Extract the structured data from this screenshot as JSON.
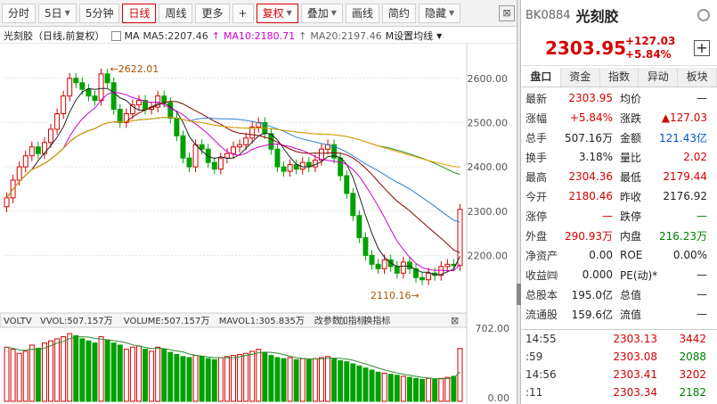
{
  "toolbar": {
    "buttons": [
      {
        "label": "分时",
        "active": false,
        "caret": false
      },
      {
        "label": "5日",
        "active": false,
        "caret": true
      },
      {
        "label": "5分钟",
        "active": false,
        "caret": false
      },
      {
        "label": "日线",
        "active": true,
        "caret": false
      },
      {
        "label": "周线",
        "active": false,
        "caret": false
      },
      {
        "label": "更多",
        "active": false,
        "caret": false
      },
      {
        "label": "+",
        "active": false,
        "caret": false
      },
      {
        "label": "复权",
        "active": true,
        "caret": true
      },
      {
        "label": "叠加",
        "active": false,
        "caret": true
      },
      {
        "label": "画线",
        "active": false,
        "caret": false
      },
      {
        "label": "简约",
        "active": false,
        "caret": false
      },
      {
        "label": "隐藏",
        "active": false,
        "caret": true
      }
    ],
    "close_label": "⊠"
  },
  "legend": {
    "title": "光刻胶（日线,前复权）",
    "ma_label": "MA",
    "ma5": "MA5:2207.46",
    "ma10": "MA10:2180.71",
    "ma20": "MA20:2197.46",
    "settings": "M设置均线",
    "ma5_color": "#333333",
    "ma10_color": "#cc00cc",
    "ma20_color": "#666666"
  },
  "chart": {
    "y_ticks": [
      "2600.00",
      "2500.00",
      "2400.00",
      "2300.00",
      "2200.00"
    ],
    "high_label": "2622.01",
    "low_label": "2110.16",
    "vol_bar_labels": [
      "VOLTV",
      "VVOL:507.157万",
      "VOLUME:507.157万",
      "MAVOL1:305.835万",
      "改参数",
      "加指标",
      "换指标"
    ],
    "vol_ticks": [
      "702.00",
      "0.00"
    ],
    "up_color": "#d40000",
    "down_color": "#00a000"
  },
  "chart_data": {
    "type": "candlestick",
    "ylim": [
      2080,
      2660
    ],
    "high": 2622.01,
    "low": 2110.16,
    "close": [
      2330,
      2370,
      2400,
      2425,
      2445,
      2430,
      2455,
      2485,
      2520,
      2560,
      2600,
      2590,
      2575,
      2560,
      2550,
      2610,
      2590,
      2530,
      2500,
      2520,
      2540,
      2550,
      2530,
      2535,
      2560,
      2545,
      2510,
      2470,
      2420,
      2400,
      2450,
      2440,
      2410,
      2395,
      2420,
      2430,
      2445,
      2450,
      2465,
      2490,
      2500,
      2475,
      2440,
      2400,
      2390,
      2405,
      2395,
      2410,
      2400,
      2415,
      2440,
      2450,
      2420,
      2380,
      2340,
      2290,
      2240,
      2200,
      2180,
      2170,
      2190,
      2175,
      2160,
      2185,
      2170,
      2150,
      2145,
      2160,
      2155,
      2175,
      2180,
      2176.92,
      2303.95
    ],
    "volume": [
      520,
      500,
      460,
      480,
      540,
      510,
      560,
      580,
      600,
      620,
      650,
      630,
      600,
      580,
      560,
      620,
      590,
      560,
      540,
      500,
      520,
      530,
      500,
      480,
      520,
      500,
      470,
      450,
      430,
      420,
      440,
      430,
      410,
      400,
      420,
      430,
      440,
      450,
      460,
      480,
      500,
      470,
      440,
      420,
      410,
      420,
      400,
      410,
      400,
      410,
      420,
      430,
      410,
      390,
      380,
      360,
      340,
      320,
      300,
      280,
      270,
      260,
      250,
      240,
      230,
      220,
      210,
      220,
      210,
      220,
      230,
      240,
      507
    ]
  },
  "panel": {
    "code": "BK0884",
    "name": "光刻胶",
    "price": "2303.95",
    "change": "+127.03",
    "change_pct": "+5.84%",
    "tabs": [
      "盘口",
      "资金",
      "指数",
      "异动",
      "板块"
    ],
    "rows": [
      {
        "l1": "最新",
        "v1": "2303.95",
        "c1": "red",
        "l2": "均价",
        "v2": "—",
        "c2": "dark"
      },
      {
        "l1": "涨幅",
        "v1": "+5.84%",
        "c1": "red",
        "l2": "涨跌",
        "v2": "▲127.03",
        "c2": "red"
      },
      {
        "l1": "总手",
        "v1": "507.16万",
        "c1": "dark",
        "l2": "金额",
        "v2": "121.43亿",
        "c2": "blue"
      },
      {
        "l1": "换手",
        "v1": "3.18%",
        "c1": "dark",
        "l2": "量比",
        "v2": "2.02",
        "c2": "red"
      },
      {
        "l1": "最高",
        "v1": "2304.36",
        "c1": "red",
        "l2": "最低",
        "v2": "2179.44",
        "c2": "red"
      },
      {
        "l1": "今开",
        "v1": "2180.46",
        "c1": "red",
        "l2": "昨收",
        "v2": "2176.92",
        "c2": "dark"
      },
      {
        "l1": "涨停",
        "v1": "—",
        "c1": "red",
        "l2": "跌停",
        "v2": "—",
        "c2": "green"
      },
      {
        "l1": "外盘",
        "v1": "290.93万",
        "c1": "red",
        "l2": "内盘",
        "v2": "216.23万",
        "c2": "green"
      },
      {
        "l1": "净资产",
        "v1": "0.00",
        "c1": "dark",
        "l2": "ROE",
        "v2": "0.00%",
        "c2": "dark"
      },
      {
        "l1": "收益㈣",
        "v1": "0.000",
        "c1": "dark",
        "l2": "PE(动)*",
        "v2": "—",
        "c2": "dark"
      },
      {
        "l1": "总股本",
        "v1": "195.0亿",
        "c1": "dark",
        "l2": "总值",
        "v2": "—",
        "c2": "dark"
      },
      {
        "l1": "流通股",
        "v1": "159.6亿",
        "c1": "dark",
        "l2": "流值",
        "v2": "—",
        "c2": "dark"
      }
    ],
    "ticks": [
      {
        "t": "14:55",
        "p": "2303.13",
        "v": "3442",
        "c": "red"
      },
      {
        "t": ":59",
        "p": "2303.08",
        "v": "2088",
        "c": "green"
      },
      {
        "t": "14:56",
        "p": "2303.41",
        "v": "3202",
        "c": "red"
      },
      {
        "t": ":11",
        "p": "2303.34",
        "v": "2182",
        "c": "green"
      }
    ]
  }
}
